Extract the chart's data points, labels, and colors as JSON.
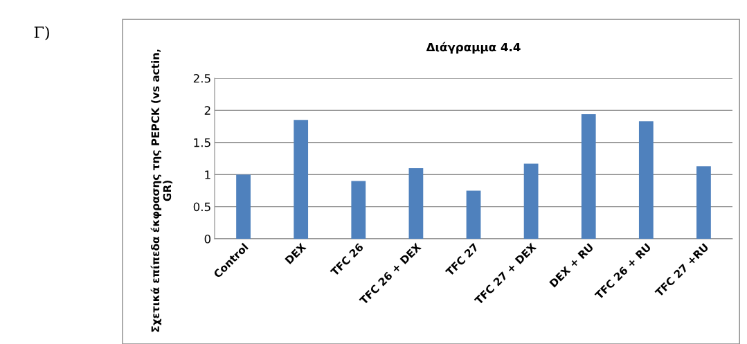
{
  "chart_data": {
    "type": "bar",
    "title": "Διάγραμμα 4.4",
    "ylabel": "Σχετικά επίπεδα έκφρασης της PEPCK (vs actin, GR)",
    "categories": [
      "Control",
      "DEX",
      "TFC 26",
      "TFC 26 + DEX",
      "TFC 27",
      "TFC 27 + DEX",
      "DEX + RU",
      "TFC 26 + RU",
      "TFC 27 +RU"
    ],
    "values": [
      1.0,
      1.85,
      0.9,
      1.1,
      0.75,
      1.17,
      1.94,
      1.83,
      1.13
    ],
    "color": "#4f81bd",
    "ylim": [
      0,
      2.5
    ],
    "yticks": [
      0,
      0.5,
      1,
      1.5,
      2,
      2.5
    ],
    "grid": "y",
    "annotations": [
      "Γ)"
    ]
  }
}
